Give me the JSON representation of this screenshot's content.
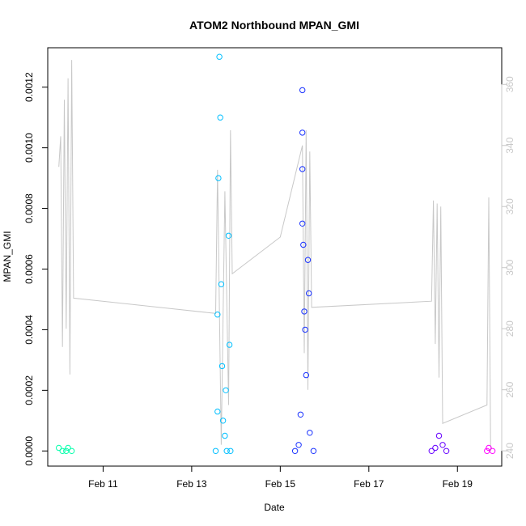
{
  "chart_data": {
    "type": "scatter",
    "title": "ATOM2 Northbound MPAN_GMI",
    "xlabel": "Date",
    "ylabel": "MPAN_GMI",
    "y2label": "",
    "x_ticks": [
      "Feb 11",
      "Feb 13",
      "Feb 15",
      "Feb 17",
      "Feb 19"
    ],
    "xlim": [
      "2014-02-09 18:00",
      "2014-02-20 00:00"
    ],
    "ylim": [
      -5e-05,
      0.00133
    ],
    "y_ticks": [
      "0.0000",
      "0.0002",
      "0.0004",
      "0.0006",
      "0.0008",
      "0.0010",
      "0.0012"
    ],
    "y2lim": [
      235,
      372
    ],
    "y2_ticks": [
      "240",
      "260",
      "280",
      "300",
      "320",
      "340",
      "360"
    ],
    "grid": false,
    "series": [
      {
        "color": "#00ffaa",
        "points": [
          [
            "2014-02-10 00:00",
            1e-05
          ],
          [
            "2014-02-10 02:00",
            0.0
          ],
          [
            "2014-02-10 04:00",
            0.0
          ],
          [
            "2014-02-10 05:00",
            1e-05
          ],
          [
            "2014-02-10 07:00",
            0.0
          ]
        ]
      },
      {
        "color": "#00bfff",
        "points": [
          [
            "2014-02-13 13:00",
            0.0
          ],
          [
            "2014-02-13 14:00",
            0.00013
          ],
          [
            "2014-02-13 14:00",
            0.00045
          ],
          [
            "2014-02-13 14:30",
            0.0009
          ],
          [
            "2014-02-13 15:00",
            0.0013
          ],
          [
            "2014-02-13 15:30",
            0.0011
          ],
          [
            "2014-02-13 16:00",
            0.00055
          ],
          [
            "2014-02-13 16:30",
            0.00028
          ],
          [
            "2014-02-13 17:00",
            0.0001
          ],
          [
            "2014-02-13 18:00",
            5e-05
          ],
          [
            "2014-02-13 18:30",
            0.0002
          ],
          [
            "2014-02-13 19:00",
            0.0
          ],
          [
            "2014-02-13 20:00",
            0.00071
          ],
          [
            "2014-02-13 20:30",
            0.00035
          ],
          [
            "2014-02-13 21:00",
            0.0
          ]
        ]
      },
      {
        "color": "#1a33ff",
        "points": [
          [
            "2014-02-15 08:00",
            0.0
          ],
          [
            "2014-02-15 10:00",
            2e-05
          ],
          [
            "2014-02-15 11:00",
            0.00012
          ],
          [
            "2014-02-15 12:00",
            0.00119
          ],
          [
            "2014-02-15 12:00",
            0.00105
          ],
          [
            "2014-02-15 12:00",
            0.00093
          ],
          [
            "2014-02-15 12:00",
            0.00075
          ],
          [
            "2014-02-15 12:30",
            0.00068
          ],
          [
            "2014-02-15 13:00",
            0.00046
          ],
          [
            "2014-02-15 13:30",
            0.0004
          ],
          [
            "2014-02-15 14:00",
            0.00025
          ],
          [
            "2014-02-15 15:00",
            0.00063
          ],
          [
            "2014-02-15 15:30",
            0.00052
          ],
          [
            "2014-02-15 16:00",
            6e-05
          ],
          [
            "2014-02-15 18:00",
            0.0
          ]
        ]
      },
      {
        "color": "#6600ff",
        "points": [
          [
            "2014-02-18 10:00",
            0.0
          ],
          [
            "2014-02-18 12:00",
            1e-05
          ],
          [
            "2014-02-18 14:00",
            5e-05
          ],
          [
            "2014-02-18 16:00",
            2e-05
          ],
          [
            "2014-02-18 18:00",
            0.0
          ]
        ]
      },
      {
        "color": "#ff00ff",
        "points": [
          [
            "2014-02-19 16:00",
            0.0
          ],
          [
            "2014-02-19 17:00",
            1e-05
          ],
          [
            "2014-02-19 19:00",
            0.0
          ]
        ]
      }
    ],
    "secondary_line": {
      "color": "#c8c8c8",
      "points": [
        [
          "2014-02-10 00:00",
          333
        ],
        [
          "2014-02-10 01:00",
          343
        ],
        [
          "2014-02-10 02:00",
          274
        ],
        [
          "2014-02-10 03:00",
          355
        ],
        [
          "2014-02-10 04:00",
          280
        ],
        [
          "2014-02-10 05:00",
          362
        ],
        [
          "2014-02-10 06:00",
          265
        ],
        [
          "2014-02-10 07:00",
          368
        ],
        [
          "2014-02-10 08:00",
          290
        ],
        [
          "2014-02-13 13:00",
          285
        ],
        [
          "2014-02-13 14:00",
          332
        ],
        [
          "2014-02-13 16:00",
          242
        ],
        [
          "2014-02-13 18:00",
          325
        ],
        [
          "2014-02-13 20:00",
          255
        ],
        [
          "2014-02-13 21:00",
          345
        ],
        [
          "2014-02-13 22:00",
          298
        ],
        [
          "2014-02-15 00:00",
          310
        ],
        [
          "2014-02-15 12:00",
          340
        ],
        [
          "2014-02-15 13:00",
          272
        ],
        [
          "2014-02-15 14:00",
          345
        ],
        [
          "2014-02-15 15:00",
          260
        ],
        [
          "2014-02-15 16:00",
          338
        ],
        [
          "2014-02-15 17:00",
          287
        ],
        [
          "2014-02-18 10:00",
          289
        ],
        [
          "2014-02-18 11:00",
          322
        ],
        [
          "2014-02-18 12:00",
          275
        ],
        [
          "2014-02-18 13:00",
          321
        ],
        [
          "2014-02-18 14:00",
          264
        ],
        [
          "2014-02-18 15:00",
          320
        ],
        [
          "2014-02-18 16:00",
          249
        ],
        [
          "2014-02-19 16:00",
          255
        ],
        [
          "2014-02-19 17:00",
          323
        ],
        [
          "2014-02-19 18:00",
          240
        ]
      ]
    }
  }
}
